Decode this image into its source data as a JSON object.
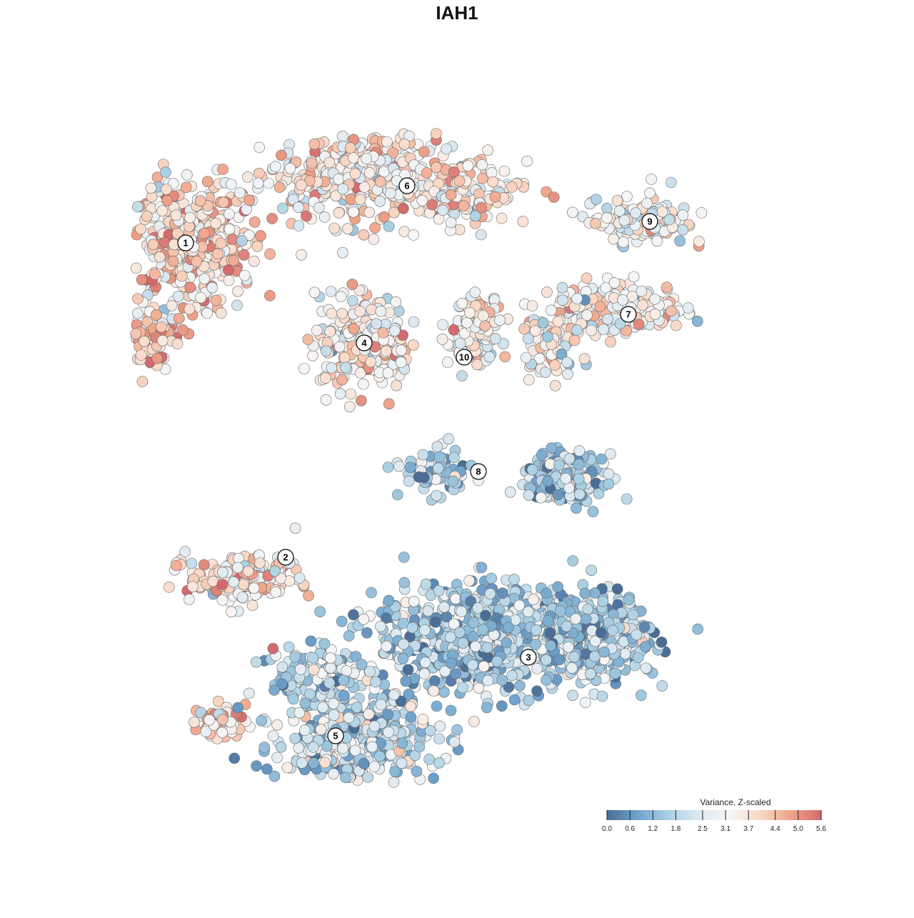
{
  "chart_data": {
    "type": "scatter",
    "title": "IAH1",
    "xlabel": "",
    "ylabel": "",
    "grid": false,
    "legend": {
      "title": "Variance, Z-scaled",
      "placement": "bottom-right",
      "ticks": [
        "0.0",
        "0.6",
        "1.2",
        "1.8",
        "2.5",
        "3.1",
        "3.7",
        "4.4",
        "5.0",
        "5.6"
      ],
      "range": [
        0.0,
        5.6
      ]
    },
    "color_scale": [
      "#4a6d96",
      "#6fa3cd",
      "#a9cfe3",
      "#dde9f1",
      "#f6f6f6",
      "#f9d9c6",
      "#f0a58a",
      "#d46a6e"
    ],
    "clusters": [
      {
        "label": "1",
        "x": -38,
        "y": 30,
        "mean_value": 3.9
      },
      {
        "label": "2",
        "x": -24,
        "y": -14,
        "mean_value": 3.6
      },
      {
        "label": "3",
        "x": 10,
        "y": -28,
        "mean_value": 1.6
      },
      {
        "label": "4",
        "x": -13,
        "y": 16,
        "mean_value": 3.4
      },
      {
        "label": "5",
        "x": -17,
        "y": -39,
        "mean_value": 2.0
      },
      {
        "label": "6",
        "x": -7,
        "y": 38,
        "mean_value": 3.4
      },
      {
        "label": "7",
        "x": 24,
        "y": 20,
        "mean_value": 3.3
      },
      {
        "label": "8",
        "x": 3,
        "y": -2,
        "mean_value": 1.5
      },
      {
        "label": "9",
        "x": 27,
        "y": 33,
        "mean_value": 3.0
      },
      {
        "label": "10",
        "x": 1,
        "y": 14,
        "mean_value": 3.2
      }
    ]
  }
}
